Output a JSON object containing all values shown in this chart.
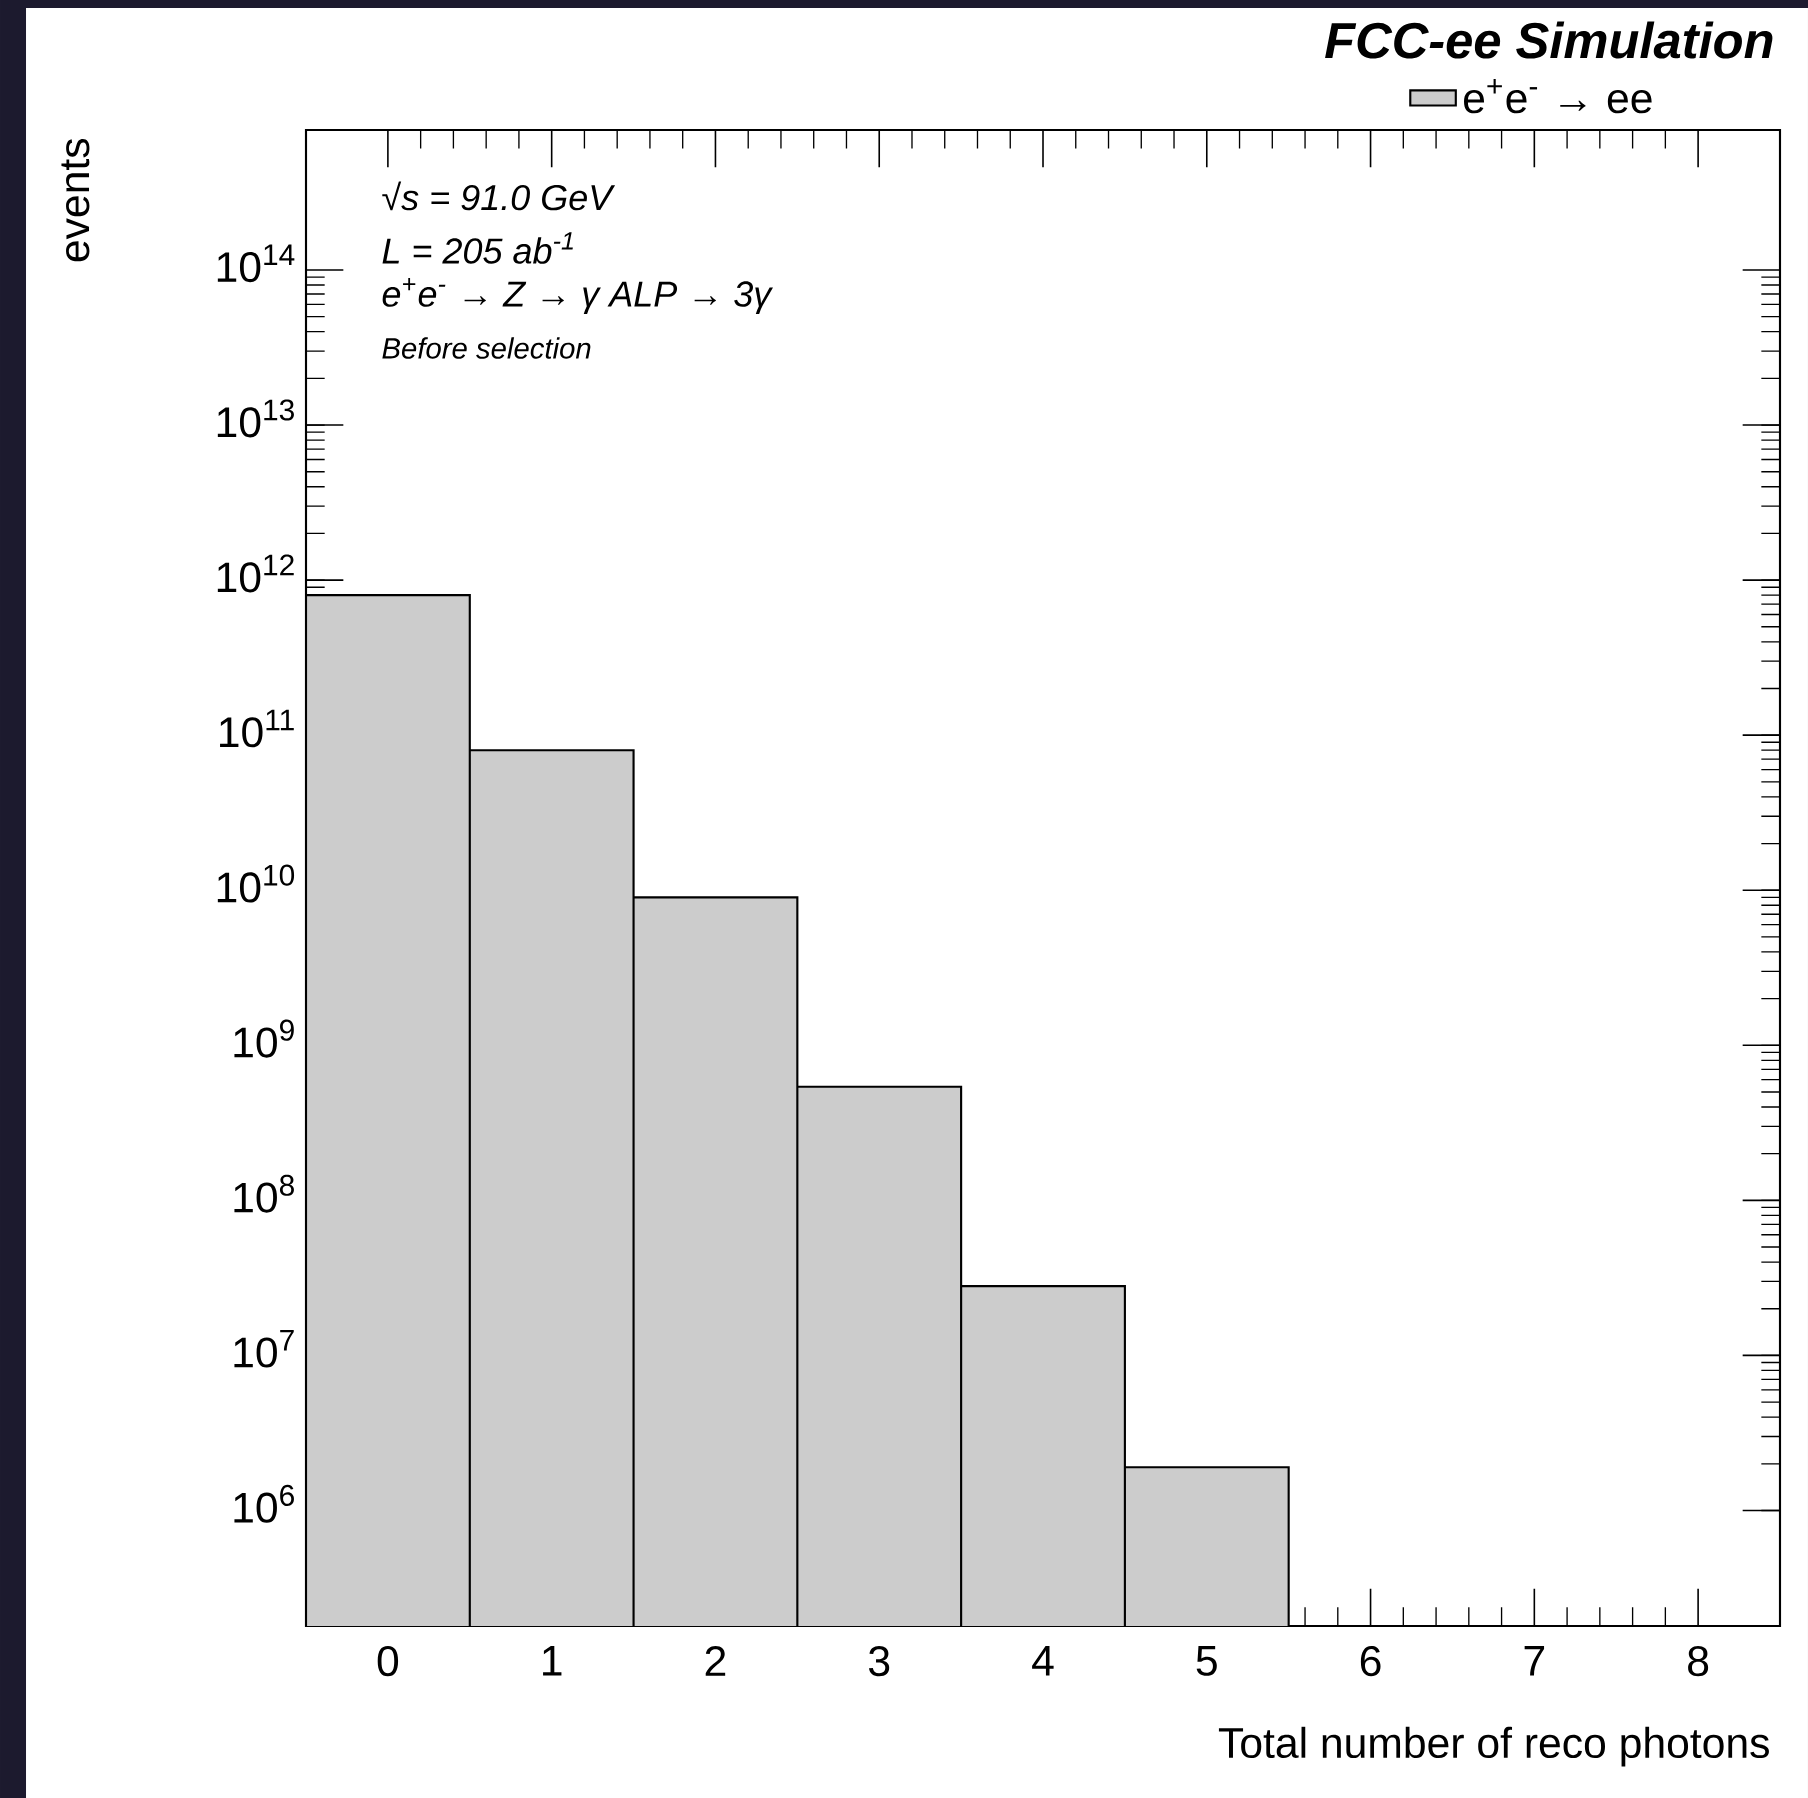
{
  "chart_data": {
    "type": "bar",
    "title": "FCC-ee Simulation",
    "xlabel": "Total number of reco photons",
    "ylabel": "events",
    "annotations": [
      "√s = 91.0 GeV",
      "L = 205 ab$^{-1}$",
      "e$^{+}$e$^{-}$ → Z → γ ALP → 3γ",
      "Before selection"
    ],
    "x": [
      0,
      1,
      2,
      3,
      4,
      5
    ],
    "series": [
      {
        "name": "e$^{+}$e$^{-}$ → ee",
        "color": "#cccccc",
        "values": [
          800000000000.0,
          80000000000.0,
          9000000000.0,
          540000000.0,
          28000000.0,
          1900000.0
        ]
      }
    ],
    "log": "y",
    "legend": "top right",
    "xlim": [
      -0.5,
      8.5
    ],
    "xticks": [
      0,
      1,
      2,
      3,
      4,
      5,
      6,
      7,
      8
    ],
    "ylim": [
      180000.0,
      800000000000000.0
    ],
    "yticks": [
      {
        "value": 1000000.0,
        "label": "10$^{6}$"
      },
      {
        "value": 10000000.0,
        "label": "10$^{7}$"
      },
      {
        "value": 100000000.0,
        "label": "10$^{8}$"
      },
      {
        "value": 1000000000.0,
        "label": "10$^{9}$"
      },
      {
        "value": 10000000000.0,
        "label": "10$^{10}$"
      },
      {
        "value": 100000000000.0,
        "label": "10$^{11}$"
      },
      {
        "value": 1000000000000.0,
        "label": "10$^{12}$"
      },
      {
        "value": 10000000000000.0,
        "label": "10$^{13}$"
      },
      {
        "value": 100000000000000.0,
        "label": "10$^{14}$"
      }
    ]
  }
}
